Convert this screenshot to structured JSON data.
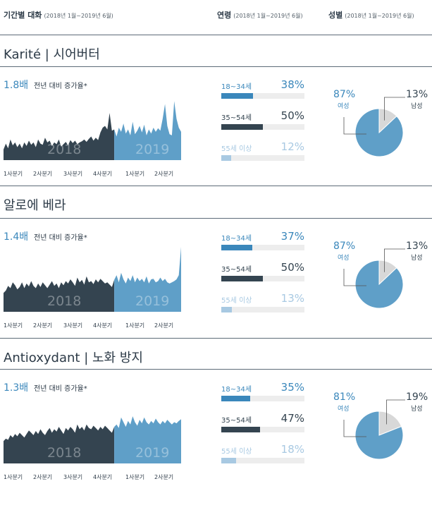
{
  "header": {
    "period": {
      "title": "기간별 대화",
      "range": "(2018년 1월~2019년 6월)"
    },
    "age": {
      "title": "연령",
      "range": "(2018년 1월~2019년 6월)"
    },
    "gender": {
      "title": "성별",
      "range": "(2018년 1월~2019년 6월)"
    }
  },
  "colors": {
    "dark": "#344450",
    "light": "#5f9fc8",
    "female": "#5f9fc8",
    "male": "#d8d8d8",
    "accent": "#3a87bb",
    "faint": "#a8c9e2"
  },
  "chart_data": [
    {
      "type": "area",
      "title": "Karité | 시어버터",
      "multiplier": "1.8배",
      "multiplier_desc": "전년 대비 증가율*",
      "period_labels": [
        "2018",
        "2019"
      ],
      "x_tick_labels": [
        "1사분기",
        "2사분기",
        "3사분기",
        "4사분기",
        "1사분기",
        "2사분기"
      ],
      "series": [
        {
          "values": [
            18,
            28,
            20,
            35,
            25,
            30,
            22,
            28,
            20,
            30,
            24,
            33,
            26,
            30,
            22,
            35,
            28,
            26,
            38,
            30,
            33,
            24,
            30,
            27,
            35,
            23,
            27,
            31,
            25,
            34,
            29,
            33,
            27,
            30,
            32,
            35,
            31,
            36,
            40,
            33,
            38,
            34,
            47,
            55,
            58,
            52,
            80,
            50,
            52,
            40,
            55,
            48,
            62,
            45,
            52,
            42,
            65,
            44,
            50,
            58,
            47,
            60,
            42,
            52,
            45,
            55,
            48,
            54,
            50,
            70,
            95,
            58,
            44,
            42,
            100,
            70,
            55,
            48
          ]
        }
      ],
      "split_index": 48,
      "age_groups": [
        {
          "label": "18~34세",
          "percent": 38,
          "percent_text": "38%"
        },
        {
          "label": "35~54세",
          "percent": 50,
          "percent_text": "50%"
        },
        {
          "label": "55세 이상",
          "percent": 12,
          "percent_text": "12%"
        }
      ],
      "gender": {
        "female": {
          "label": "여성",
          "percent": 87,
          "percent_text": "87%"
        },
        "male": {
          "label": "남성",
          "percent": 13,
          "percent_text": "13%"
        }
      }
    },
    {
      "type": "area",
      "title": "알로에 베라",
      "multiplier": "1.4배",
      "multiplier_desc": "전년 대비 증가율*",
      "period_labels": [
        "2018",
        "2019"
      ],
      "x_tick_labels": [
        "1사분기",
        "2사분기",
        "3사분기",
        "4사분기",
        "1사분기",
        "2사분기"
      ],
      "series": [
        {
          "values": [
            32,
            36,
            44,
            40,
            50,
            45,
            38,
            42,
            50,
            40,
            48,
            43,
            52,
            44,
            40,
            48,
            42,
            50,
            45,
            40,
            46,
            52,
            44,
            48,
            40,
            50,
            45,
            52,
            48,
            55,
            50,
            44,
            58,
            50,
            54,
            46,
            60,
            50,
            52,
            47,
            55,
            50,
            56,
            52,
            48,
            50,
            46,
            42,
            54,
            62,
            50,
            66,
            55,
            48,
            58,
            52,
            62,
            50,
            58,
            52,
            56,
            50,
            60,
            48,
            55,
            56,
            50,
            52,
            58,
            52,
            56,
            50,
            48,
            50,
            52,
            55,
            62,
            110
          ]
        }
      ],
      "split_index": 48,
      "age_groups": [
        {
          "label": "18~34세",
          "percent": 37,
          "percent_text": "37%"
        },
        {
          "label": "35~54세",
          "percent": 50,
          "percent_text": "50%"
        },
        {
          "label": "55세 이상",
          "percent": 13,
          "percent_text": "13%"
        }
      ],
      "gender": {
        "female": {
          "label": "여성",
          "percent": 87,
          "percent_text": "87%"
        },
        "male": {
          "label": "남성",
          "percent": 13,
          "percent_text": "13%"
        }
      }
    },
    {
      "type": "area",
      "title": "Antioxydant | 노화 방지",
      "multiplier": "1.3배",
      "multiplier_desc": "전년 대비 증가율*",
      "period_labels": [
        "2018",
        "2019"
      ],
      "x_tick_labels": [
        "1사분기",
        "2사분기",
        "3사분기",
        "4사분기",
        "1사분기",
        "2사분기"
      ],
      "series": [
        {
          "values": [
            38,
            42,
            40,
            48,
            44,
            50,
            46,
            52,
            48,
            44,
            50,
            56,
            52,
            48,
            55,
            50,
            58,
            52,
            48,
            55,
            60,
            52,
            58,
            54,
            62,
            56,
            50,
            60,
            56,
            62,
            58,
            52,
            66,
            58,
            62,
            56,
            66,
            60,
            58,
            64,
            60,
            56,
            62,
            58,
            64,
            60,
            56,
            52,
            62,
            66,
            60,
            78,
            70,
            62,
            72,
            66,
            80,
            70,
            64,
            74,
            68,
            78,
            70,
            66,
            72,
            68,
            76,
            70,
            66,
            72,
            68,
            74,
            70,
            66,
            70,
            68,
            72,
            75
          ]
        }
      ],
      "split_index": 48,
      "age_groups": [
        {
          "label": "18~34세",
          "percent": 35,
          "percent_text": "35%"
        },
        {
          "label": "35~54세",
          "percent": 47,
          "percent_text": "47%"
        },
        {
          "label": "55세 이상",
          "percent": 18,
          "percent_text": "18%"
        }
      ],
      "gender": {
        "female": {
          "label": "여성",
          "percent": 81,
          "percent_text": "81%"
        },
        "male": {
          "label": "남성",
          "percent": 19,
          "percent_text": "19%"
        }
      }
    }
  ]
}
